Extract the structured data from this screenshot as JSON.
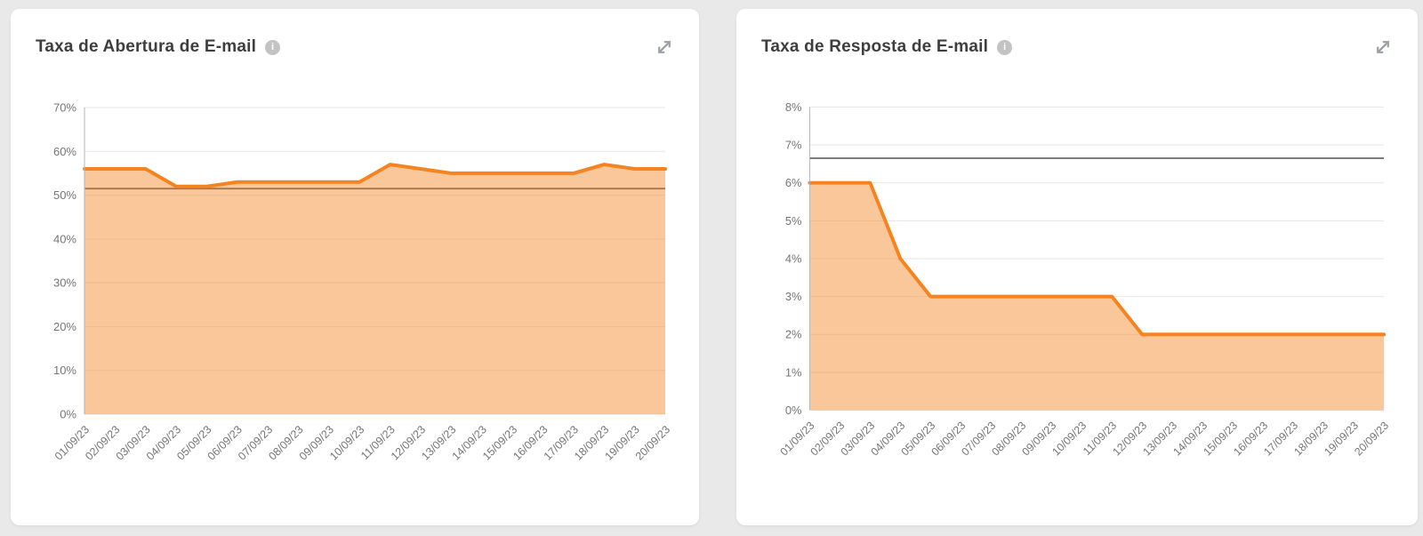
{
  "page": {
    "background": "#e9e9e9",
    "card_background": "#ffffff"
  },
  "icons": {
    "info_glyph": "i"
  },
  "colors": {
    "title": "#3e3e3e",
    "axis_label": "#757575",
    "gridline": "#e7e7e7",
    "axis_line": "#b5b5b5"
  },
  "chart_data": [
    {
      "type": "area",
      "title": "Taxa de Abertura de E-mail",
      "categories": [
        "01/09/23",
        "02/09/23",
        "03/09/23",
        "04/09/23",
        "05/09/23",
        "06/09/23",
        "07/09/23",
        "08/09/23",
        "09/09/23",
        "10/09/23",
        "11/09/23",
        "12/09/23",
        "13/09/23",
        "14/09/23",
        "15/09/23",
        "16/09/23",
        "17/09/23",
        "18/09/23",
        "19/09/23",
        "20/09/23"
      ],
      "values": [
        56,
        56,
        56,
        52,
        52,
        53,
        53,
        53,
        53,
        53,
        57,
        56,
        55,
        55,
        55,
        55,
        55,
        57,
        56,
        56
      ],
      "reference_line": 51.5,
      "xlabel": "",
      "ylabel": "",
      "ylim": [
        0,
        70
      ],
      "ytick_step": 10,
      "ytick_labels": [
        "0%",
        "10%",
        "20%",
        "30%",
        "40%",
        "50%",
        "60%",
        "70%"
      ],
      "grid": true,
      "legend": "none",
      "line_color": "#F5831F",
      "fill_opacity": 0.45,
      "reference_color": "#6b6b6b"
    },
    {
      "type": "area",
      "title": "Taxa de Resposta de E-mail",
      "categories": [
        "01/09/23",
        "02/09/23",
        "03/09/23",
        "04/09/23",
        "05/09/23",
        "06/09/23",
        "07/09/23",
        "08/09/23",
        "09/09/23",
        "10/09/23",
        "11/09/23",
        "12/09/23",
        "13/09/23",
        "14/09/23",
        "15/09/23",
        "16/09/23",
        "17/09/23",
        "18/09/23",
        "19/09/23",
        "20/09/23"
      ],
      "values": [
        6,
        6,
        6,
        4,
        3,
        3,
        3,
        3,
        3,
        3,
        3,
        2,
        2,
        2,
        2,
        2,
        2,
        2,
        2,
        2
      ],
      "reference_line": 6.65,
      "xlabel": "",
      "ylabel": "",
      "ylim": [
        0,
        8
      ],
      "ytick_step": 1,
      "ytick_labels": [
        "0%",
        "1%",
        "2%",
        "3%",
        "4%",
        "5%",
        "6%",
        "7%",
        "8%"
      ],
      "grid": true,
      "legend": "none",
      "line_color": "#F5831F",
      "fill_opacity": 0.45,
      "reference_color": "#6b6b6b"
    }
  ]
}
